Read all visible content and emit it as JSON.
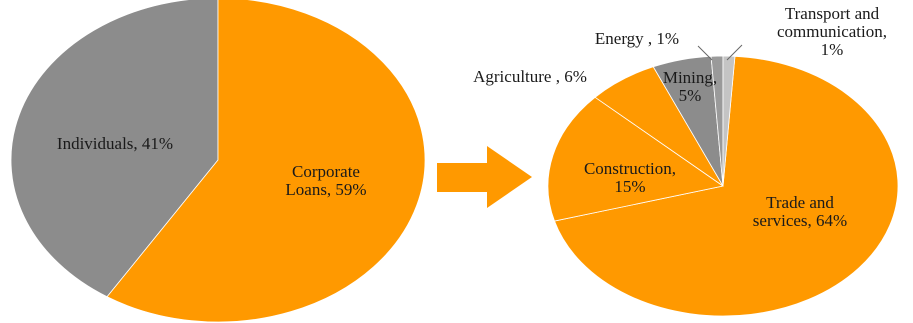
{
  "chart_data": [
    {
      "type": "pie",
      "title": "",
      "slices": [
        {
          "label_lines": [
            "Individuals, 41%"
          ],
          "value": 41,
          "color": "#8c8c8c"
        },
        {
          "label_lines": [
            "Corporate",
            "Loans, 59%"
          ],
          "value": 59,
          "color": "#ff9900"
        }
      ]
    },
    {
      "type": "pie",
      "title": "",
      "slices": [
        {
          "label_lines": [
            "Trade and",
            "services, 64%"
          ],
          "value": 64,
          "color": "#ff9900"
        },
        {
          "label_lines": [
            "Construction,",
            "15%"
          ],
          "value": 15,
          "color": "#ff9900"
        },
        {
          "label_lines": [
            "Agriculture , 6%"
          ],
          "value": 6,
          "color": "#ff9900"
        },
        {
          "label_lines": [
            "Mining,",
            "5%"
          ],
          "value": 5,
          "color": "#8c8c8c"
        },
        {
          "label_lines": [
            "Energy , 1%"
          ],
          "value": 1,
          "color": "#9a9a9a"
        },
        {
          "label_lines": [
            "Transport and",
            "communication,",
            "1%"
          ],
          "value": 1,
          "color": "#c4c4c4"
        }
      ]
    }
  ]
}
